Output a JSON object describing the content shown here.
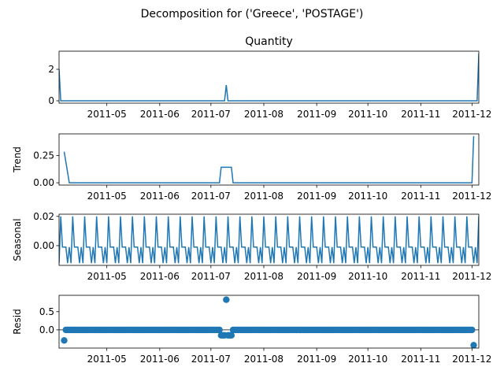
{
  "chart_data": {
    "title": "Decomposition for ('Greece', 'POSTAGE')",
    "type": "line",
    "x_start": "2011-04-03",
    "x_end": "2011-12-05",
    "xlim": [
      "2011-04-03",
      "2011-12-05"
    ],
    "x_ticks": [
      "2011-05",
      "2011-06",
      "2011-07",
      "2011-08",
      "2011-09",
      "2011-10",
      "2011-11",
      "2011-12"
    ],
    "x_tick_dates": [
      "2011-05-01",
      "2011-06-01",
      "2011-07-01",
      "2011-08-01",
      "2011-09-01",
      "2011-10-01",
      "2011-11-01",
      "2011-12-01"
    ],
    "grid": false,
    "panels": [
      {
        "name": "Quantity",
        "title": "Quantity",
        "ylabel": "",
        "type": "line",
        "ylim": [
          -0.15,
          3.15
        ],
        "y_ticks": [
          0,
          2
        ],
        "points": [
          [
            "2011-04-03",
            2.0
          ],
          [
            "2011-04-04",
            0
          ],
          [
            "2011-07-09",
            0
          ],
          [
            "2011-07-10",
            1.0
          ],
          [
            "2011-07-11",
            0
          ],
          [
            "2011-12-04",
            0
          ],
          [
            "2011-12-05",
            3.0
          ]
        ]
      },
      {
        "name": "Trend",
        "title": "",
        "ylabel": "Trend",
        "type": "line",
        "ylim": [
          -0.021,
          0.45
        ],
        "y_ticks": [
          0.0,
          0.25
        ],
        "y_tick_labels": [
          "0.00",
          "0.25"
        ],
        "points": [
          [
            "2011-04-06",
            0.286
          ],
          [
            "2011-04-09",
            0
          ],
          [
            "2011-07-06",
            0
          ],
          [
            "2011-07-07",
            0.143
          ],
          [
            "2011-07-13",
            0.143
          ],
          [
            "2011-07-14",
            0
          ],
          [
            "2011-12-01",
            0
          ],
          [
            "2011-12-02",
            0.429
          ]
        ]
      },
      {
        "name": "Seasonal",
        "title": "",
        "ylabel": "Seasonal",
        "type": "line",
        "ylim": [
          -0.0135,
          0.0215
        ],
        "y_ticks": [
          0.0,
          0.02
        ],
        "y_tick_labels": [
          "0.00",
          "0.02"
        ],
        "pattern_start": "2011-04-03",
        "period_days": 7,
        "pattern": [
          -0.012,
          0.02,
          -0.001,
          -0.001,
          -0.001,
          -0.012,
          -0.001
        ]
      },
      {
        "name": "Resid",
        "title": "",
        "ylabel": "Resid",
        "type": "scatter",
        "ylim": [
          -0.5,
          0.95
        ],
        "y_ticks": [
          0.0,
          0.5
        ],
        "y_tick_labels": [
          "0.0",
          "0.5"
        ],
        "zero_line": true,
        "dense_start": "2011-04-06",
        "dense_end": "2011-12-02",
        "dense_value": 0.0,
        "special_points": [
          [
            "2011-04-06",
            -0.29
          ],
          [
            "2011-07-07",
            -0.15
          ],
          [
            "2011-07-08",
            -0.15
          ],
          [
            "2011-07-09",
            -0.15
          ],
          [
            "2011-07-10",
            0.83
          ],
          [
            "2011-07-11",
            -0.15
          ],
          [
            "2011-07-12",
            -0.15
          ],
          [
            "2011-07-13",
            -0.15
          ],
          [
            "2011-12-02",
            -0.42
          ]
        ]
      }
    ]
  }
}
